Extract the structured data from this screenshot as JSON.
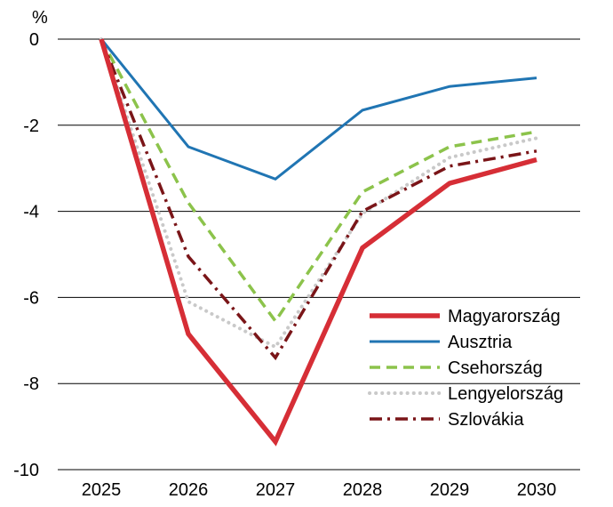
{
  "chart_data": {
    "type": "line",
    "title": "",
    "xlabel": "",
    "ylabel": "",
    "y_unit": "%",
    "x": [
      "2025",
      "2026",
      "2027",
      "2028",
      "2029",
      "2030"
    ],
    "ylim": [
      -10,
      0
    ],
    "yticks": [
      0,
      -2,
      -4,
      -6,
      -8,
      -10
    ],
    "yticklabels": [
      "0",
      "-2",
      "-4",
      "-6",
      "-8",
      "-10"
    ],
    "grid": true,
    "legend_position": "bottom-right",
    "series": [
      {
        "name": "Magyarország",
        "color": "#d62e36",
        "style": "solid-thick",
        "values": [
          0,
          -6.85,
          -9.35,
          -4.85,
          -3.35,
          -2.8
        ]
      },
      {
        "name": "Ausztria",
        "color": "#2075b3",
        "style": "solid",
        "values": [
          0,
          -2.5,
          -3.25,
          -1.65,
          -1.1,
          -0.9
        ]
      },
      {
        "name": "Csehország",
        "color": "#8cc34b",
        "style": "dashed",
        "values": [
          0,
          -3.8,
          -6.55,
          -3.55,
          -2.5,
          -2.15
        ]
      },
      {
        "name": "Lengyelország",
        "color": "#c9c9c9",
        "style": "dotted",
        "values": [
          0,
          -6.1,
          -7.15,
          -4.05,
          -2.75,
          -2.3
        ]
      },
      {
        "name": "Szlovákia",
        "color": "#7a1518",
        "style": "dashdot",
        "values": [
          0,
          -5.05,
          -7.4,
          -4.0,
          -2.95,
          -2.6
        ]
      }
    ]
  }
}
